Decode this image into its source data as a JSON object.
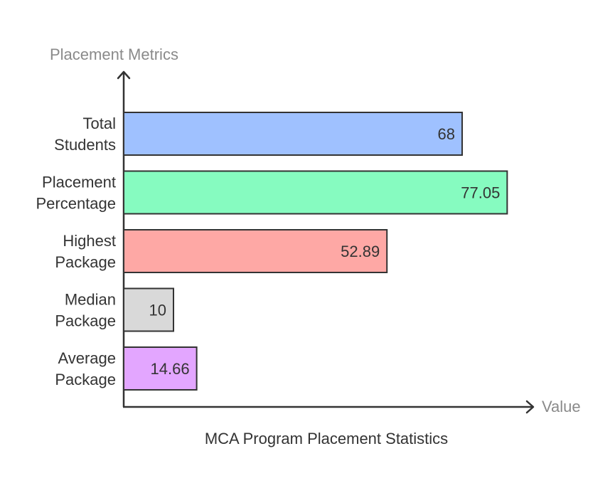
{
  "chart_data": {
    "type": "bar",
    "orientation": "horizontal",
    "title": "MCA Program Placement Statistics",
    "xlabel": "Value",
    "ylabel": "Placement Metrics",
    "categories": [
      [
        "Total",
        "Students"
      ],
      [
        "Placement",
        "Percentage"
      ],
      [
        "Highest",
        "Package"
      ],
      [
        "Median",
        "Package"
      ],
      [
        "Average",
        "Package"
      ]
    ],
    "values": [
      68,
      77.05,
      52.89,
      10,
      14.66
    ],
    "value_labels": [
      "68",
      "77.05",
      "52.89",
      "10",
      "14.66"
    ],
    "colors": [
      "#9fc1ff",
      "#86fbc0",
      "#fea8a5",
      "#d9d9d9",
      "#e3a6ff"
    ],
    "border_color": "#333333",
    "grid": false,
    "legend": "none"
  }
}
